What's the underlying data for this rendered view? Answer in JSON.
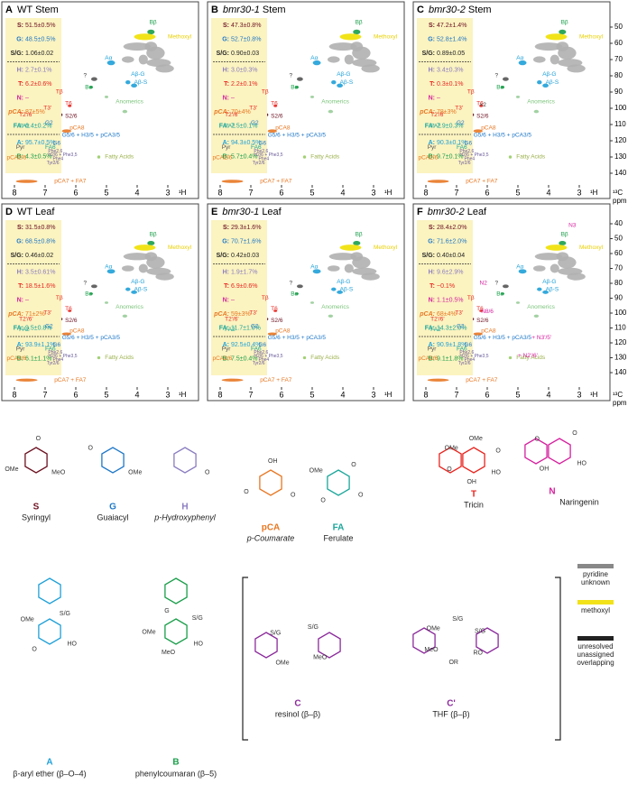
{
  "spectra": {
    "row_labels": [
      "S:",
      "G:",
      "S/G:",
      "H:",
      "T:",
      "N:",
      "pCA:",
      "FA:",
      "A:",
      "B:"
    ],
    "x_ticks": [
      8,
      7,
      6,
      5,
      4,
      3
    ],
    "x_unit": "¹H",
    "y_ticks_stem": [
      50,
      60,
      70,
      80,
      90,
      100,
      110,
      120,
      130,
      140
    ],
    "y_ticks_leaf": [
      40,
      50,
      60,
      70,
      80,
      90,
      100,
      110,
      120,
      130,
      140
    ],
    "y_unit": "¹³C",
    "y_unit2": "ppm",
    "peaks": [
      "Bβ",
      "Methoxyl",
      "Aα",
      "Aβ-G",
      "Aβ-S",
      "?",
      "Bα",
      "Tβ",
      "T6",
      "T2'/6'",
      "T3'",
      "S2/6",
      "Anomerics",
      "FA2",
      "G2",
      "pCA8",
      "G5/6 + H3/5 + pCA3/5",
      "G6",
      "Pyr",
      "FA6",
      "Phe2,6",
      "H2/6 + Phe3,5",
      "Phe4",
      "Tyr2/6",
      "pCA2/6",
      "Fatty Acids",
      "pCA7 + FA7"
    ],
    "panels": [
      {
        "letter": "A",
        "genotype": "WT",
        "genotype_italic": false,
        "tissue": "Stem",
        "rows": [
          "51.5±0.5%",
          "48.5±0.5%",
          "1.06±0.02",
          "2.7±0.1%",
          "6.2±0.6%",
          "–",
          "87±5%",
          "6.4±0.2%",
          "95.7±0.5%",
          "4.3±0.5%"
        ],
        "extras": []
      },
      {
        "letter": "B",
        "genotype": "bmr30-1",
        "genotype_italic": true,
        "tissue": "Stem",
        "rows": [
          "47.3±0.8%",
          "52.7±0.8%",
          "0.90±0.03",
          "3.0±0.3%",
          "2.2±0.1%",
          "–",
          "70±4%",
          "7.5±0.1%",
          "94.3±0.5%",
          "5.7±0.4%"
        ],
        "extras": []
      },
      {
        "letter": "C",
        "genotype": "bmr30-2",
        "genotype_italic": true,
        "tissue": "Stem",
        "rows": [
          "47.2±1.4%",
          "52.8±1.4%",
          "0.89±0.05",
          "3.4±0.3%",
          "0.3±0.1%",
          "–",
          "78±3%",
          "7.9±0.3%",
          "90.3±0.1%",
          "9.7±0.1%"
        ],
        "extras": [
          "×2"
        ]
      },
      {
        "letter": "D",
        "genotype": "WT",
        "genotype_italic": false,
        "tissue": "Leaf",
        "rows": [
          "31.5±0.8%",
          "68.5±0.8%",
          "0.46±0.02",
          "3.5±0.61%",
          "18.5±1.6%",
          "–",
          "71±2%",
          "9.5±0.8%",
          "93.9±1.1%",
          "6.1±1.1%"
        ],
        "extras": []
      },
      {
        "letter": "E",
        "genotype": "bmr30-1",
        "genotype_italic": true,
        "tissue": "Leaf",
        "rows": [
          "29.3±1.6%",
          "70.7±1.6%",
          "0.42±0.03",
          "1.9±1.7%",
          "6.9±0.6%",
          "–",
          "59±3%",
          "11.7±1.0%",
          "92.5±0.4%",
          "7.5±0.4%"
        ],
        "extras": []
      },
      {
        "letter": "F",
        "genotype": "bmr30-2",
        "genotype_italic": true,
        "tissue": "Leaf",
        "rows": [
          "28.4±2.0%",
          "71.6±2.0%",
          "0.40±0.04",
          "9.6±2.9%",
          "~0.1%",
          "1.1±0.5%",
          "68±4%",
          "14.3±2.0%",
          "90.9±1.8%",
          "9.1±1.8%"
        ],
        "extras": [
          "N3",
          "N2",
          "N8/6",
          "+ N3'/5'",
          "+ N2'/6'"
        ]
      }
    ]
  },
  "structures": {
    "units": [
      {
        "abbr": "S",
        "name": "Syringyl",
        "atoms": [
          "MeO",
          "OMe",
          "O"
        ]
      },
      {
        "abbr": "G",
        "name": "Guaiacyl",
        "atoms": [
          "OMe",
          "O"
        ]
      },
      {
        "abbr": "H",
        "name": "p-Hydroxyphenyl",
        "atoms": [
          "O"
        ]
      },
      {
        "abbr": "pCA",
        "name": "p-Coumarate",
        "atoms": [
          "O",
          "O",
          "OH"
        ]
      },
      {
        "abbr": "FA",
        "name": "Ferulate",
        "atoms": [
          "O",
          "O",
          "OMe",
          "O"
        ]
      },
      {
        "abbr": "T",
        "name": "Tricin",
        "atoms": [
          "HO",
          "OH",
          "O",
          "OMe",
          "OMe",
          "O"
        ]
      },
      {
        "abbr": "N",
        "name": "Naringenin",
        "atoms": [
          "HO",
          "OH",
          "O",
          "O"
        ]
      },
      {
        "abbr": "A",
        "name": "β-aryl ether (β–O–4)",
        "atoms": [
          "HO",
          "O",
          "OMe",
          "S/G"
        ]
      },
      {
        "abbr": "B",
        "name": "phenylcoumaran (β–5)",
        "atoms": [
          "HO",
          "MeO",
          "OMe",
          "G",
          "S/G"
        ]
      },
      {
        "abbr": "C",
        "name": "resinol (β–β)",
        "atoms": [
          "MeO",
          "OMe",
          "S/G",
          "S/G"
        ]
      },
      {
        "abbr": "C'",
        "name": "THF (β–β)",
        "atoms": [
          "RO",
          "OR",
          "MeO",
          "OMe",
          "S/G",
          "S/G"
        ]
      }
    ],
    "legend": [
      {
        "label": "pyridine unknown",
        "color": "#888888"
      },
      {
        "label": "methoxyl",
        "color": "#f2e21a"
      },
      {
        "label": "unresolved unassigned overlapping",
        "color": "#222222"
      }
    ]
  }
}
